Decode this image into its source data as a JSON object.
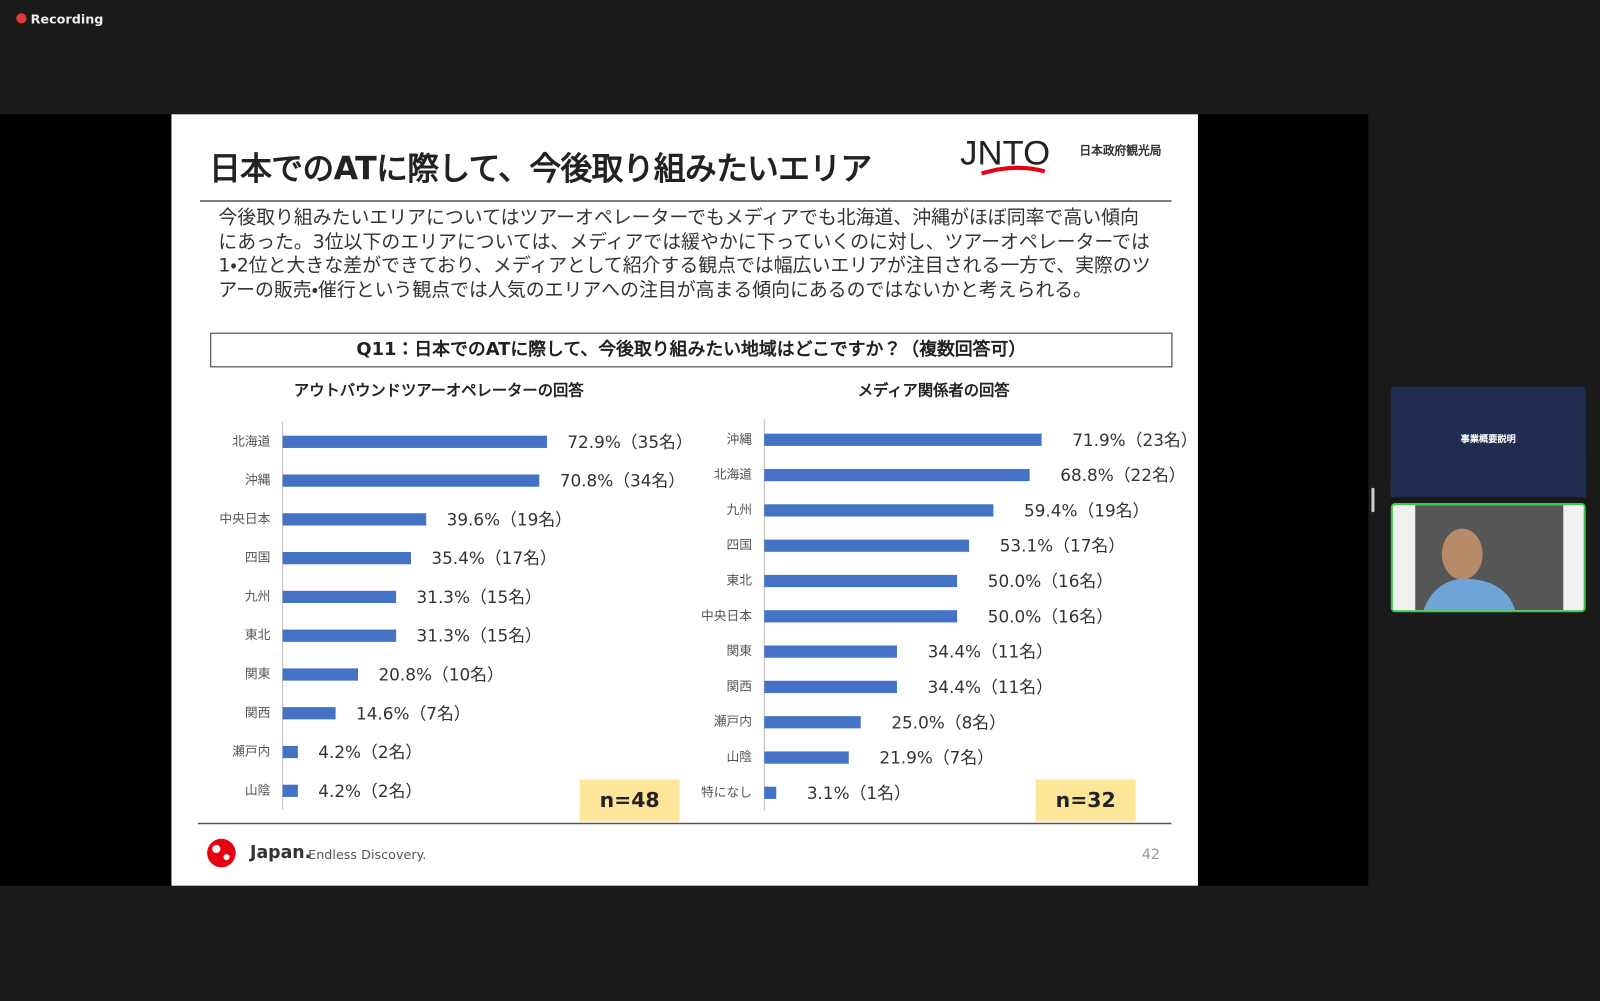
{
  "app": {
    "recording": "Recording"
  },
  "slide": {
    "title": "日本でのATに際して、今後取り組みたいエリア",
    "logo": "JNTO",
    "logo_subtitle": "日本政府観光局",
    "summary": "今後取り組みたいエリアについてはツアーオペレーターでもメディアでも北海道、沖縄がほぼ同率で高い傾向にあった。3位以下のエリアについては、メディアでは緩やかに下っていくのに対し、ツアーオペレーターでは1・2位と大きな差ができており、メディアとして紹介する観点では幅広いエリアが注目される一方で、実際のツアーの販売・催行という観点では人気のエリアへの注目が高まる傾向にあるのではないかと考えられる。",
    "question": "Q11：日本でのATに際して、今後取り組みたい地域はどこですか？（複数回答可）",
    "footer_brand": "Japan.",
    "footer_tagline": "Endless Discovery.",
    "page_number": "42"
  },
  "thumbnail": {
    "title": "事業概要説明"
  },
  "chart_data": [
    {
      "type": "bar",
      "orientation": "horizontal",
      "title": "アウトバウンドツアーオペレーターの回答",
      "color": "#4472c4",
      "categories": [
        "北海道",
        "沖縄",
        "中央日本",
        "四国",
        "九州",
        "東北",
        "関東",
        "関西",
        "瀬戸内",
        "山陰"
      ],
      "values": [
        72.9,
        70.8,
        39.6,
        35.4,
        31.3,
        31.3,
        20.8,
        14.6,
        4.2,
        4.2
      ],
      "value_labels": [
        "72.9%（35名）",
        "70.8%（34名）",
        "39.6%（19名）",
        "35.4%（17名）",
        "31.3%（15名）",
        "31.3%（15名）",
        "20.8%（10名）",
        "14.6%（7名）",
        "4.2%（2名）",
        "4.2%（2名）"
      ],
      "sample_size": "n=48"
    },
    {
      "type": "bar",
      "orientation": "horizontal",
      "title": "メディア関係者の回答",
      "color": "#4472c4",
      "categories": [
        "沖縄",
        "北海道",
        "九州",
        "四国",
        "東北",
        "中央日本",
        "関東",
        "関西",
        "瀬戸内",
        "山陰",
        "特になし"
      ],
      "values": [
        71.9,
        68.8,
        59.4,
        53.1,
        50.0,
        50.0,
        34.4,
        34.4,
        25.0,
        21.9,
        3.1
      ],
      "value_labels": [
        "71.9%（23名）",
        "68.8%（22名）",
        "59.4%（19名）",
        "53.1%（17名）",
        "50.0%（16名）",
        "50.0%（16名）",
        "34.4%（11名）",
        "34.4%（11名）",
        "25.0%（8名）",
        "21.9%（7名）",
        "3.1%（1名）"
      ],
      "sample_size": "n=32"
    }
  ]
}
